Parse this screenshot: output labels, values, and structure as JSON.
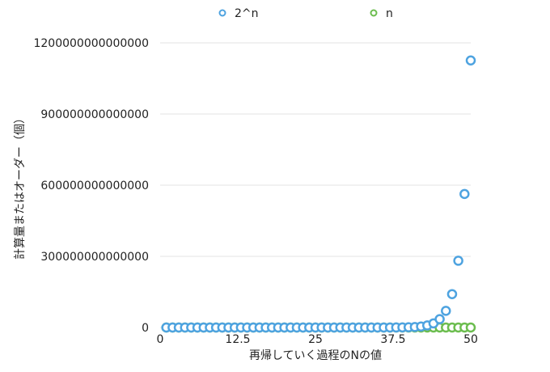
{
  "chart_data": {
    "type": "scatter",
    "title": "",
    "xlabel": "再帰していく過程のNの値",
    "ylabel": "計算量またはオーダー（個）",
    "xlim": [
      0,
      50
    ],
    "ylim": [
      0,
      1200000000000000
    ],
    "x_ticks": [
      "0",
      "12.5",
      "25",
      "37.5",
      "50"
    ],
    "y_ticks": [
      "0",
      "300000000000000",
      "600000000000000",
      "900000000000000",
      "1200000000000000"
    ],
    "x_tick_values": [
      0,
      12.5,
      25,
      37.5,
      50
    ],
    "y_tick_values": [
      0,
      300000000000000,
      600000000000000,
      900000000000000,
      1200000000000000
    ],
    "grid": "horizontal",
    "legend_position": "top",
    "series": [
      {
        "name": "2^n",
        "color": "#4ea3e0",
        "x": [
          1,
          2,
          3,
          4,
          5,
          6,
          7,
          8,
          9,
          10,
          11,
          12,
          13,
          14,
          15,
          16,
          17,
          18,
          19,
          20,
          21,
          22,
          23,
          24,
          25,
          26,
          27,
          28,
          29,
          30,
          31,
          32,
          33,
          34,
          35,
          36,
          37,
          38,
          39,
          40,
          41,
          42,
          43,
          44,
          45,
          46,
          47,
          48,
          49,
          50
        ],
        "y": [
          2,
          4,
          8,
          16,
          32,
          64,
          128,
          256,
          512,
          1024,
          2048,
          4096,
          8192,
          16384,
          32768,
          65536,
          131072,
          262144,
          524288,
          1048576,
          2097152,
          4194304,
          8388608,
          16777216,
          33554432,
          67108864,
          134217728,
          268435456,
          536870912,
          1073741824,
          2147483648,
          4294967296,
          8589934592,
          17179869184,
          34359738368,
          68719476736,
          137438953472,
          274877906944,
          549755813888,
          1099511627776,
          2199023255552,
          4398046511104,
          8796093022208,
          17592186044416,
          35184372088832,
          70368744177664,
          140737488355328,
          281474976710656,
          562949953421312,
          1125899906842624
        ]
      },
      {
        "name": "n",
        "color": "#6cbd4f",
        "x": [
          1,
          2,
          3,
          4,
          5,
          6,
          7,
          8,
          9,
          10,
          11,
          12,
          13,
          14,
          15,
          16,
          17,
          18,
          19,
          20,
          21,
          22,
          23,
          24,
          25,
          26,
          27,
          28,
          29,
          30,
          31,
          32,
          33,
          34,
          35,
          36,
          37,
          38,
          39,
          40,
          41,
          42,
          43,
          44,
          45,
          46,
          47,
          48,
          49,
          50
        ],
        "y": [
          1,
          2,
          3,
          4,
          5,
          6,
          7,
          8,
          9,
          10,
          11,
          12,
          13,
          14,
          15,
          16,
          17,
          18,
          19,
          20,
          21,
          22,
          23,
          24,
          25,
          26,
          27,
          28,
          29,
          30,
          31,
          32,
          33,
          34,
          35,
          36,
          37,
          38,
          39,
          40,
          41,
          42,
          43,
          44,
          45,
          46,
          47,
          48,
          49,
          50
        ]
      }
    ]
  }
}
